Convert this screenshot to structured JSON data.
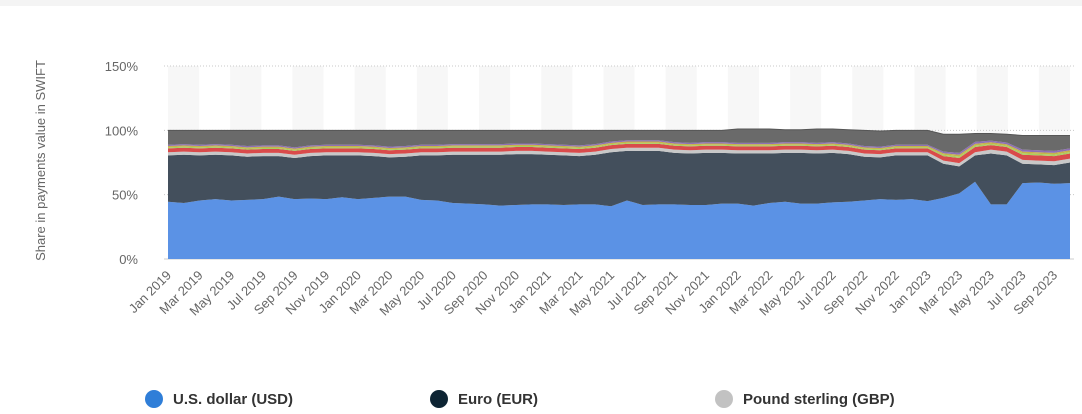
{
  "chart_data": {
    "type": "area",
    "stacked": true,
    "ylabel": "Share in payments value in SWIFT",
    "ytick_labels": [
      "0%",
      "50%",
      "100%",
      "150%"
    ],
    "ytick_values": [
      0,
      50,
      100,
      150
    ],
    "ylim": [
      0,
      150
    ],
    "grid": "horizontal dotted",
    "legend_position": "bottom",
    "x": [
      "Jan 2019",
      "Feb 2019",
      "Mar 2019",
      "Apr 2019",
      "May 2019",
      "Jun 2019",
      "Jul 2019",
      "Aug 2019",
      "Sep 2019",
      "Oct 2019",
      "Nov 2019",
      "Dec 2019",
      "Jan 2020",
      "Feb 2020",
      "Mar 2020",
      "Apr 2020",
      "May 2020",
      "Jun 2020",
      "Jul 2020",
      "Aug 2020",
      "Sep 2020",
      "Oct 2020",
      "Nov 2020",
      "Dec 2020",
      "Jan 2021",
      "Feb 2021",
      "Mar 2021",
      "Apr 2021",
      "May 2021",
      "Jun 2021",
      "Jul 2021",
      "Aug 2021",
      "Sep 2021",
      "Oct 2021",
      "Nov 2021",
      "Dec 2021",
      "Jan 2022",
      "Feb 2022",
      "Mar 2022",
      "Apr 2022",
      "May 2022",
      "Jun 2022",
      "Jul 2022",
      "Aug 2022",
      "Sep 2022",
      "Oct 2022",
      "Nov 2022",
      "Dec 2022",
      "Jan 2023",
      "Feb 2023",
      "Mar 2023",
      "Apr 2023",
      "May 2023",
      "Jun 2023",
      "Jul 2023",
      "Aug 2023",
      "Sep 2023",
      "Oct 2023"
    ],
    "xtick_labels": [
      "Jan 2019",
      "Mar 2019",
      "May 2019",
      "Jul 2019",
      "Sep 2019",
      "Nov 2019",
      "Jan 2020",
      "Mar 2020",
      "May 2020",
      "Jul 2020",
      "Sep 2020",
      "Nov 2020",
      "Jan 2021",
      "Mar 2021",
      "May 2021",
      "Jul 2021",
      "Sep 2021",
      "Nov 2021",
      "Jan 2022",
      "Mar 2022",
      "May 2022",
      "Jul 2022",
      "Sep 2022",
      "Nov 2022",
      "Jan 2023",
      "Mar 2023",
      "May 2023",
      "Jul 2023",
      "Sep 2023"
    ],
    "series": [
      {
        "name": "U.S. dollar (USD)",
        "color": "#5b92e5",
        "values": [
          44.5,
          43.5,
          45.5,
          46.5,
          45.5,
          46,
          46.5,
          48.5,
          46.5,
          47,
          46.5,
          48,
          46.5,
          47.5,
          48.5,
          48.5,
          46,
          45.5,
          43.5,
          43,
          42.5,
          41.5,
          42,
          42.5,
          42.5,
          42,
          42.5,
          42.5,
          41,
          45.5,
          42,
          42.5,
          42.5,
          42,
          42,
          43,
          43,
          41.5,
          43.5,
          44.5,
          43,
          43,
          44,
          44.5,
          45.5,
          46.5,
          46,
          46.5,
          45,
          47.5,
          51,
          60,
          42.5,
          42.5,
          59,
          59.5,
          58.5,
          59
        ]
      },
      {
        "name": "Euro (EUR)",
        "color": "#434f5c",
        "values": [
          36,
          37.5,
          35,
          34.5,
          35,
          33.5,
          33.5,
          31.5,
          32,
          33,
          34,
          32.5,
          34,
          32.5,
          30.5,
          31,
          34.5,
          35,
          37.5,
          38,
          38.5,
          39.5,
          39.5,
          39,
          38.5,
          38.5,
          37.5,
          38.5,
          42,
          38.5,
          42,
          41.5,
          40,
          40,
          40.5,
          39.5,
          39,
          40.5,
          38.5,
          38,
          39.5,
          39,
          38.5,
          37,
          34,
          32.5,
          34.5,
          34,
          35.5,
          26.5,
          21,
          20.5,
          39.5,
          38,
          15,
          14,
          14.5,
          16
        ]
      },
      {
        "name": "Pound sterling (GBP)",
        "color": "#c8c8c8",
        "values": [
          2.5,
          2.5,
          2.5,
          2.5,
          2.5,
          2.5,
          2.5,
          2.5,
          2.5,
          2.5,
          2.5,
          2.5,
          2.5,
          2.5,
          2.5,
          2.5,
          2.5,
          2.5,
          2.5,
          2.5,
          2.5,
          2.5,
          2.5,
          2.5,
          2.5,
          2.5,
          2.5,
          2.5,
          2.5,
          2.5,
          2.5,
          2.5,
          2.5,
          2.5,
          2.5,
          2.5,
          2.5,
          2.5,
          2.5,
          2.5,
          2.5,
          2.5,
          2.5,
          2.5,
          2.5,
          2.5,
          2.5,
          2.5,
          2.5,
          2.5,
          2.5,
          2.5,
          3,
          3,
          3,
          3,
          3,
          3
        ]
      },
      {
        "name": "",
        "color": "#d94b4b",
        "values": [
          3,
          3,
          3,
          3,
          3,
          3,
          3,
          3,
          3,
          3,
          3,
          3,
          3,
          3,
          3,
          3,
          3,
          3,
          3,
          3,
          3,
          3,
          3,
          3,
          3,
          3,
          3,
          3,
          3,
          3,
          3,
          3,
          3,
          3,
          3,
          3,
          3,
          3,
          3,
          3,
          3,
          3,
          3,
          3,
          3,
          3,
          3,
          3,
          3,
          3.5,
          4,
          4,
          3.5,
          3.5,
          4,
          4,
          4,
          4
        ]
      },
      {
        "name": "",
        "color": "#a8cf60",
        "values": [
          0.8,
          0.8,
          0.8,
          0.8,
          0.8,
          0.8,
          0.8,
          0.8,
          0.8,
          0.8,
          0.8,
          0.8,
          0.8,
          0.8,
          0.8,
          0.8,
          0.8,
          0.8,
          0.8,
          0.8,
          0.8,
          0.8,
          0.8,
          0.8,
          0.8,
          0.8,
          0.8,
          0.8,
          0.8,
          0.8,
          0.8,
          0.8,
          0.8,
          0.8,
          0.8,
          0.8,
          0.8,
          0.8,
          0.8,
          0.8,
          0.8,
          0.8,
          0.8,
          0.8,
          0.8,
          0.8,
          0.8,
          0.8,
          0.8,
          1,
          1.2,
          1.2,
          1,
          1,
          1.2,
          1.2,
          1.2,
          1.2
        ]
      },
      {
        "name": "",
        "color": "#c5b34a",
        "values": [
          1,
          1,
          1,
          1,
          1,
          1,
          1,
          1,
          1,
          1,
          1,
          1,
          1,
          1,
          1,
          1,
          1,
          1,
          1,
          1,
          1,
          1,
          1,
          1,
          1,
          1,
          1,
          1,
          1,
          1,
          1,
          1,
          1,
          1,
          1,
          1,
          1,
          1,
          1,
          1,
          1,
          1,
          1,
          1,
          1,
          1,
          1,
          1,
          1,
          1.2,
          1.3,
          1.3,
          1.2,
          1.2,
          1.3,
          1.3,
          1.3,
          1.3
        ]
      },
      {
        "name": "",
        "color": "#8e6fb5",
        "values": [
          1,
          1,
          1,
          1,
          1,
          1,
          1,
          1,
          1,
          1,
          1,
          1,
          1,
          1,
          1,
          1,
          1,
          1,
          1,
          1,
          1,
          1,
          1,
          1,
          1,
          1,
          1,
          1,
          1,
          1,
          1,
          1,
          1,
          1,
          1,
          1,
          1,
          1,
          1,
          1,
          1,
          1,
          1,
          1,
          1,
          1,
          1,
          1,
          1,
          1.3,
          1.5,
          1.5,
          1.3,
          1.3,
          1.5,
          1.5,
          1.5,
          1.5
        ]
      },
      {
        "name": "",
        "color": "#6a6a6a",
        "values": [
          11.2,
          10.7,
          11.2,
          10.7,
          11.2,
          12.2,
          11.7,
          11.7,
          13.2,
          11.7,
          11.2,
          11.2,
          11.2,
          11.7,
          12.7,
          12.2,
          11.2,
          11.2,
          10.7,
          10.7,
          10.7,
          10.7,
          10.2,
          10.2,
          10.7,
          11.2,
          11.7,
          10.7,
          8.7,
          7.7,
          7.7,
          7.7,
          9.2,
          9.7,
          9.2,
          9.2,
          10.7,
          10.7,
          10.7,
          9.7,
          9.7,
          10.7,
          10.2,
          10.7,
          12.2,
          12.2,
          11.2,
          11.2,
          11.2,
          13.5,
          14.5,
          6.5,
          5.5,
          6.5,
          11,
          11.5,
          12,
          10
        ]
      }
    ]
  },
  "legend": [
    {
      "label": "U.S. dollar (USD)",
      "color": "#2f7ed8"
    },
    {
      "label": "Euro (EUR)",
      "color": "#0d2433"
    },
    {
      "label": "Pound sterling (GBP)",
      "color": "#c2c2c2"
    }
  ]
}
